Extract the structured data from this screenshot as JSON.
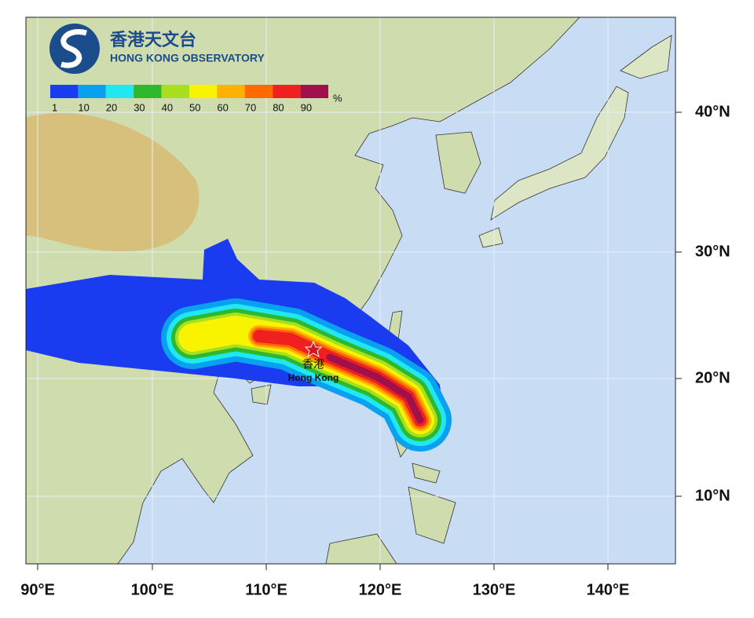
{
  "logo": {
    "name_zh": "香港天文台",
    "name_en": "HONG KONG OBSERVATORY"
  },
  "legend": {
    "labels": [
      "1",
      "10",
      "20",
      "30",
      "40",
      "50",
      "60",
      "70",
      "80",
      "90"
    ],
    "unit": "%"
  },
  "place": {
    "name_zh": "香港",
    "name_en": "Hong Kong"
  },
  "axes": {
    "x_labels": [
      "90°E",
      "100°E",
      "110°E",
      "120°E",
      "130°E",
      "140°E"
    ],
    "y_labels": [
      "40°N",
      "30°N",
      "20°N",
      "10°N"
    ]
  }
}
